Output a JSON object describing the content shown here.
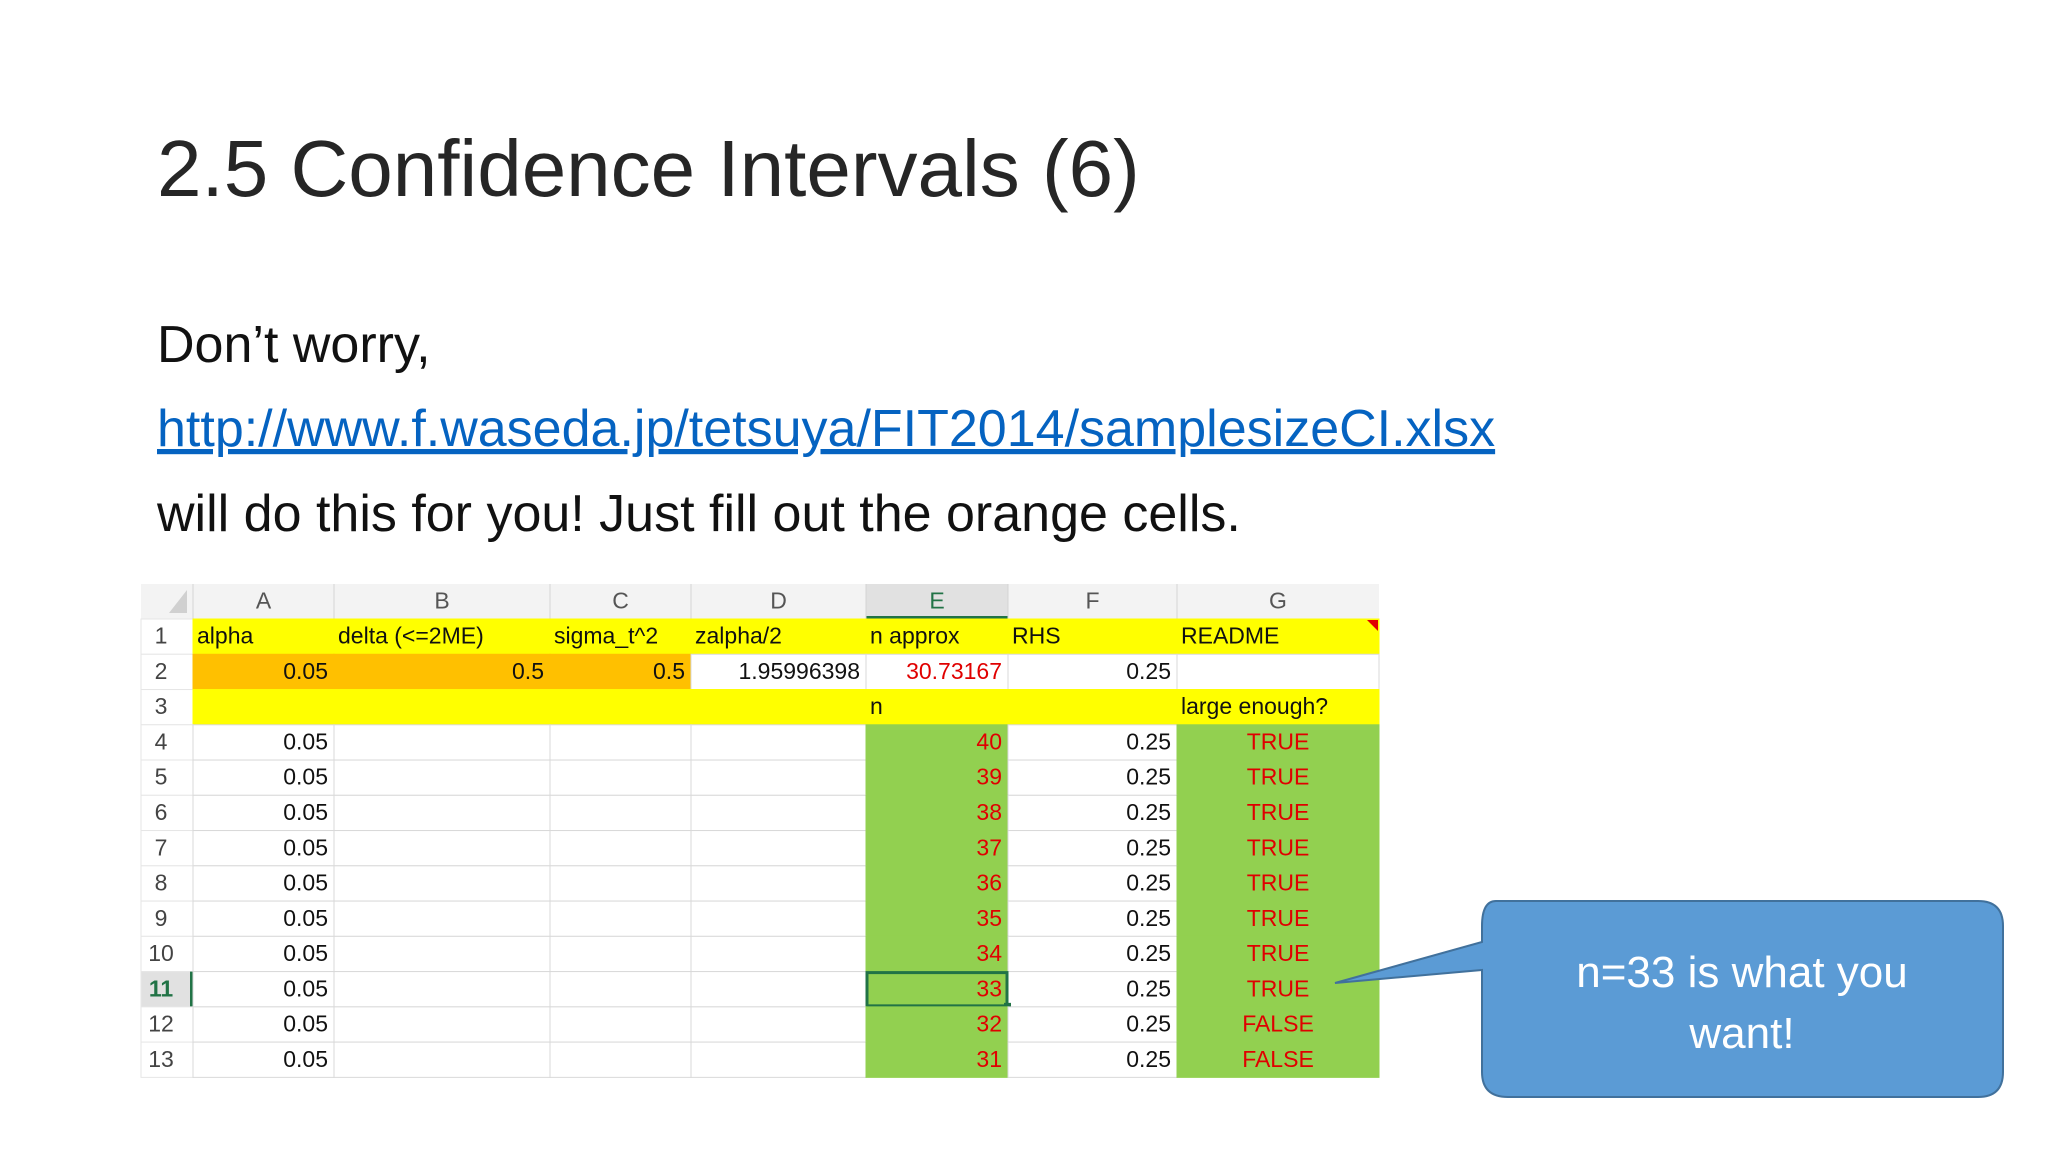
{
  "title": "2.5 Confidence Intervals (6)",
  "body": {
    "line1": "Don’t worry,",
    "link": "http://www.f.waseda.jp/tetsuya/FIT2014/samplesizeCI.xlsx",
    "line3": "will do this for you! Just fill out the orange cells."
  },
  "spreadsheet": {
    "columns": [
      "A",
      "B",
      "C",
      "D",
      "E",
      "F",
      "G"
    ],
    "rows": [
      {
        "number": "1",
        "cells": [
          "alpha",
          "delta (<=2ME)",
          "sigma_t^2",
          "zalpha/2",
          "n approx",
          "RHS",
          "README"
        ]
      },
      {
        "number": "2",
        "cells": [
          "0.05",
          "0.5",
          "0.5",
          "1.95996398",
          "30.73167",
          "0.25",
          null
        ]
      },
      {
        "number": "3",
        "cells": [
          null,
          null,
          null,
          null,
          "n",
          null,
          "large enough?"
        ]
      },
      {
        "number": "4",
        "cells": [
          "0.05",
          null,
          null,
          null,
          "40",
          "0.25",
          "TRUE"
        ]
      },
      {
        "number": "5",
        "cells": [
          "0.05",
          null,
          null,
          null,
          "39",
          "0.25",
          "TRUE"
        ]
      },
      {
        "number": "6",
        "cells": [
          "0.05",
          null,
          null,
          null,
          "38",
          "0.25",
          "TRUE"
        ]
      },
      {
        "number": "7",
        "cells": [
          "0.05",
          null,
          null,
          null,
          "37",
          "0.25",
          "TRUE"
        ]
      },
      {
        "number": "8",
        "cells": [
          "0.05",
          null,
          null,
          null,
          "36",
          "0.25",
          "TRUE"
        ]
      },
      {
        "number": "9",
        "cells": [
          "0.05",
          null,
          null,
          null,
          "35",
          "0.25",
          "TRUE"
        ]
      },
      {
        "number": "10",
        "cells": [
          "0.05",
          null,
          null,
          null,
          "34",
          "0.25",
          "TRUE"
        ]
      },
      {
        "number": "11",
        "cells": [
          "0.05",
          null,
          null,
          null,
          "33",
          "0.25",
          "TRUE"
        ]
      },
      {
        "number": "12",
        "cells": [
          "0.05",
          null,
          null,
          null,
          "32",
          "0.25",
          "FALSE"
        ]
      },
      {
        "number": "13",
        "cells": [
          "0.05",
          null,
          null,
          null,
          "31",
          "0.25",
          "FALSE"
        ]
      }
    ]
  },
  "callout": {
    "lines": [
      "n=33 is what you",
      "want!"
    ]
  }
}
